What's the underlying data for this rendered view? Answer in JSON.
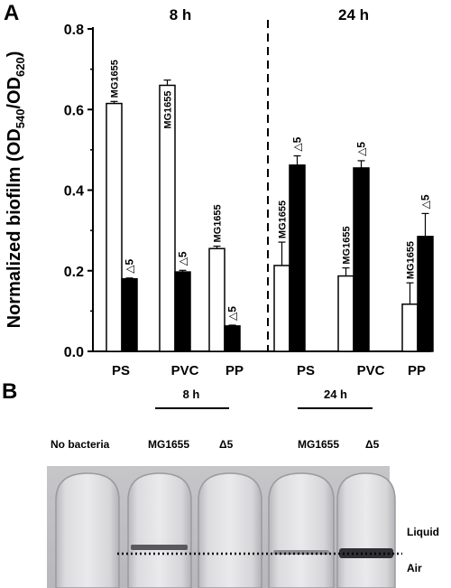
{
  "panel_a": {
    "letter": "A",
    "ylabel_main": "Normalized biofilm (OD",
    "ylabel_sub1": "540",
    "ylabel_mid": "/OD",
    "ylabel_sub2": "620",
    "ylabel_end": ")"
  },
  "chart_data": {
    "type": "bar",
    "ylim": [
      0,
      0.8
    ],
    "yticks": [
      "0.0",
      "0.2",
      "0.4",
      "0.6",
      "0.8"
    ],
    "grid": false,
    "groups": [
      {
        "title": "8 h",
        "categories": [
          "PS",
          "PVC",
          "PP"
        ]
      },
      {
        "title": "24 h",
        "categories": [
          "PS",
          "PVC",
          "PP"
        ]
      }
    ],
    "bar_pairs": [
      {
        "group": 0,
        "category": "PS",
        "mg1655": 0.615,
        "mg1655_err": 0.005,
        "delta5": 0.18,
        "delta5_err": 0.002
      },
      {
        "group": 0,
        "category": "PVC",
        "mg1655": 0.66,
        "mg1655_err": 0.013,
        "delta5": 0.197,
        "delta5_err": 0.004
      },
      {
        "group": 0,
        "category": "PP",
        "mg1655": 0.255,
        "mg1655_err": 0.006,
        "delta5": 0.063,
        "delta5_err": 0.002
      },
      {
        "group": 1,
        "category": "PS",
        "mg1655": 0.213,
        "mg1655_err": 0.058,
        "delta5": 0.462,
        "delta5_err": 0.023
      },
      {
        "group": 1,
        "category": "PVC",
        "mg1655": 0.187,
        "mg1655_err": 0.02,
        "delta5": 0.455,
        "delta5_err": 0.018
      },
      {
        "group": 1,
        "category": "PP",
        "mg1655": 0.117,
        "mg1655_err": 0.053,
        "delta5": 0.285,
        "delta5_err": 0.057
      }
    ],
    "bar_label_mg": "MG1655",
    "bar_label_delta": "△5",
    "series": [
      {
        "name": "MG1655",
        "color": "#ffffff"
      },
      {
        "name": "△5",
        "color": "#000000"
      }
    ]
  },
  "panel_b": {
    "letter": "B",
    "time_8h": "8 h",
    "time_24h": "24 h",
    "labels": [
      "No bacteria",
      "MG1655",
      "Δ5",
      "MG1655",
      "Δ5"
    ],
    "liquid_label": "Liquid",
    "air_label": "Air"
  }
}
